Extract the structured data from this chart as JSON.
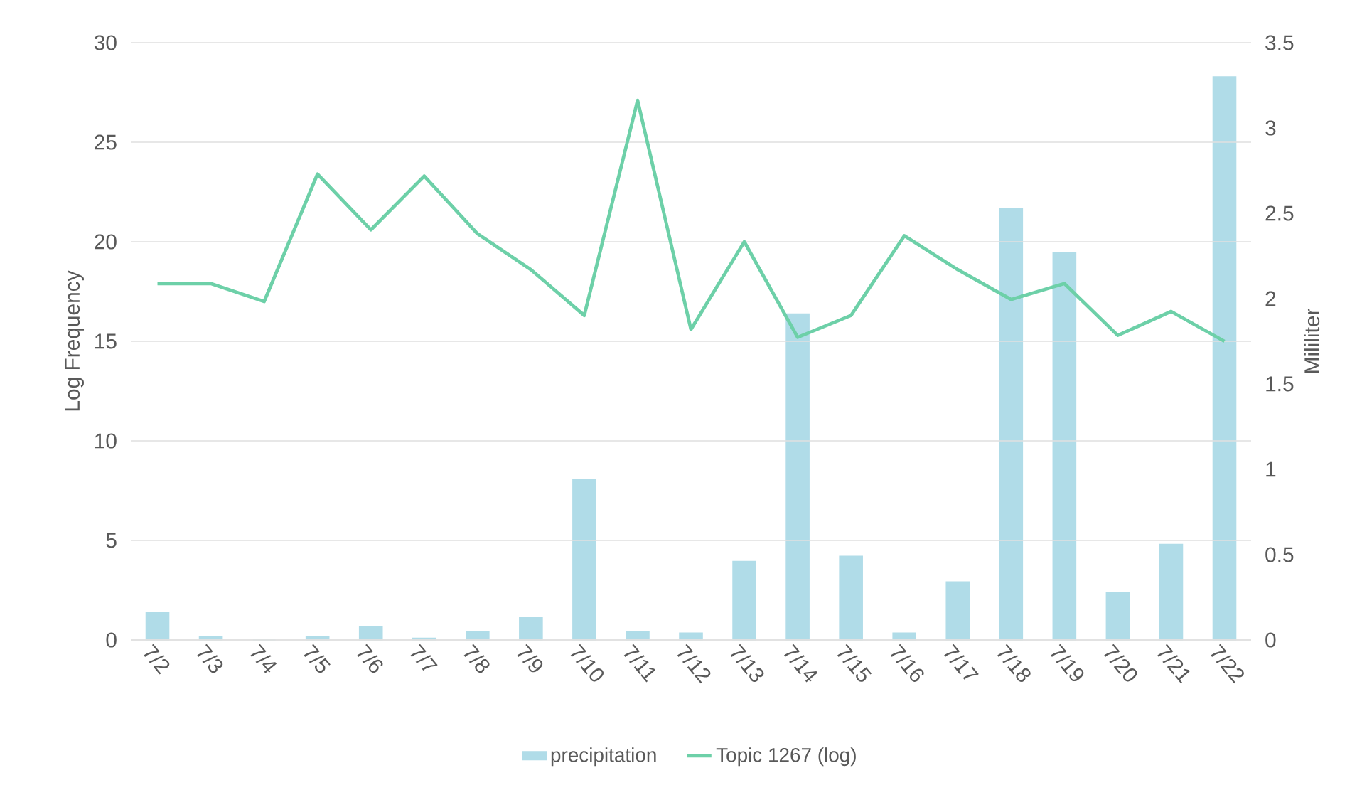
{
  "chart_data": {
    "type": "bar",
    "categories": [
      "7/2",
      "7/3",
      "7/4",
      "7/5",
      "7/6",
      "7/7",
      "7/8",
      "7/9",
      "7/10",
      "7/11",
      "7/12",
      "7/13",
      "7/14",
      "7/15",
      "7/16",
      "7/17",
      "7/18",
      "7/19",
      "7/20",
      "7/21",
      "7/22"
    ],
    "series": [
      {
        "name": "precipitation",
        "axis": "y2",
        "color": "#b0dce8",
        "values": [
          0.16,
          0.02,
          0,
          0.02,
          0.08,
          0.01,
          0.05,
          0.13,
          0.94,
          0.05,
          0.04,
          0.46,
          1.91,
          0.49,
          0.04,
          0.34,
          2.53,
          2.27,
          0.28,
          0.56,
          3.3
        ]
      },
      {
        "name": "Topic 1267 (log)",
        "type": "line",
        "axis": "y",
        "color": "#6dd0a8",
        "values": [
          17.9,
          17.9,
          17.0,
          23.4,
          20.6,
          23.3,
          20.4,
          18.6,
          16.3,
          27.1,
          15.6,
          20.0,
          15.2,
          16.3,
          20.3,
          18.6,
          17.1,
          17.9,
          15.3,
          16.5,
          15.0
        ]
      }
    ],
    "ylabel": "Log Frequency",
    "y2label": "Mililiter",
    "ylim": [
      0,
      30
    ],
    "yticks": [
      0,
      5,
      10,
      15,
      20,
      25,
      30
    ],
    "y2lim": [
      0,
      3.5
    ],
    "y2ticks": [
      0,
      0.5,
      1,
      1.5,
      2,
      2.5,
      3,
      3.5
    ],
    "grid": "y",
    "legend": "bottom"
  }
}
